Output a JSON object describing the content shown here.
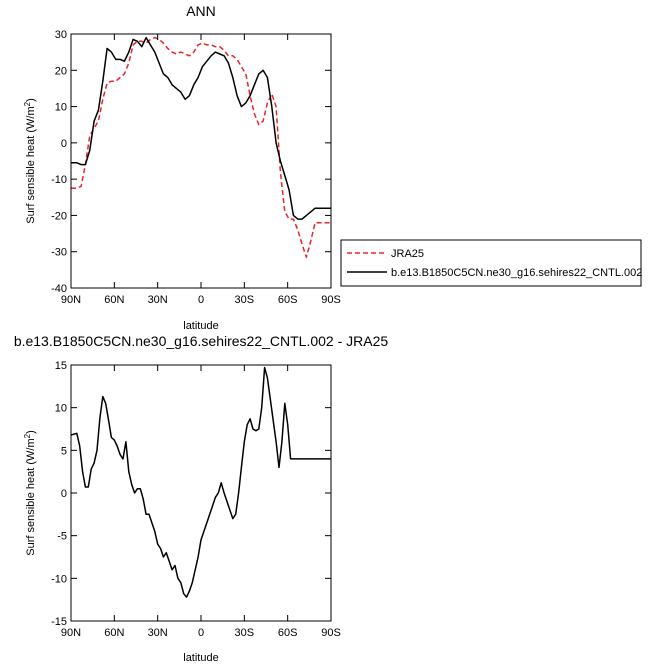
{
  "chart_data": [
    {
      "type": "line",
      "title": "ANN",
      "xlabel": "latitude",
      "ylabel": "Surf sensible heat (W/m",
      "ylabel_sup": "2",
      "ylabel_close": ")",
      "x_ticks": [
        -90,
        -60,
        -30,
        0,
        30,
        60,
        90
      ],
      "x_tick_labels": [
        "90N",
        "60N",
        "30N",
        "0",
        "30S",
        "60S",
        "90S"
      ],
      "y_ticks": [
        -40,
        -30,
        -20,
        -10,
        0,
        10,
        20,
        30
      ],
      "y_tick_labels": [
        "-40",
        "-30",
        "-20",
        "-10",
        "0",
        "10",
        "20",
        "30"
      ],
      "xlim": [
        -90,
        90
      ],
      "ylim": [
        -40,
        30
      ],
      "grid": false,
      "legend_position": "right",
      "x": [
        -90,
        -86,
        -83,
        -80,
        -77,
        -74,
        -71,
        -68,
        -65,
        -62,
        -59,
        -56,
        -53,
        -50,
        -47,
        -44,
        -41,
        -38,
        -35,
        -32,
        -29,
        -26,
        -23,
        -20,
        -17,
        -14,
        -11,
        -8,
        -5,
        -2,
        1,
        4,
        7,
        10,
        13,
        16,
        19,
        22,
        25,
        28,
        31,
        34,
        37,
        40,
        43,
        46,
        49,
        52,
        55,
        58,
        61,
        64,
        67,
        70,
        73,
        76,
        79,
        82,
        85,
        88,
        90
      ],
      "series": [
        {
          "name": "JRA25",
          "color": "#e4262b",
          "dash": "dashed",
          "values": [
            -12.5,
            -12.5,
            -12,
            -6,
            2,
            4,
            6,
            12,
            16.5,
            17,
            17,
            18,
            19,
            22,
            27,
            28,
            28,
            27.5,
            28.5,
            29,
            28.5,
            27.5,
            26,
            25,
            24.5,
            25,
            24.5,
            24,
            25,
            27,
            27.5,
            27,
            27,
            26.5,
            26.5,
            25.5,
            24,
            24,
            23,
            21,
            19,
            13,
            8,
            5,
            6,
            11,
            13.5,
            10,
            -8,
            -19,
            -21,
            -21,
            -24,
            -28,
            -31.5,
            -27,
            -22,
            -22,
            -22,
            -22,
            -22
          ]
        },
        {
          "name": "b.e13.B1850C5CN.ne30_g16.sehires22_CNTL.002",
          "color": "#000000",
          "dash": "solid",
          "values": [
            -5.5,
            -5.5,
            -6,
            -6,
            -2,
            6,
            9,
            17,
            26,
            25,
            23,
            23,
            22.5,
            25,
            28.5,
            28,
            26.5,
            29,
            27,
            25,
            22,
            19,
            18,
            16,
            15,
            14,
            12,
            13,
            16,
            18,
            21,
            22.5,
            24,
            25,
            24.5,
            24,
            22,
            18,
            13,
            10,
            11,
            13,
            16,
            19,
            20,
            18,
            10,
            0,
            -5,
            -9,
            -13,
            -20,
            -21,
            -21,
            -20,
            -19,
            -18,
            -18,
            -18,
            -18,
            -18
          ]
        }
      ]
    },
    {
      "type": "line",
      "title": "b.e13.B1850C5CN.ne30_g16.sehires22_CNTL.002 - JRA25",
      "xlabel": "latitude",
      "ylabel": "Surf sensible heat (W/m",
      "ylabel_sup": "2",
      "ylabel_close": ")",
      "x_ticks": [
        -90,
        -60,
        -30,
        0,
        30,
        60,
        90
      ],
      "x_tick_labels": [
        "90N",
        "60N",
        "30N",
        "0",
        "30S",
        "60S",
        "90S"
      ],
      "y_ticks": [
        -15,
        -10,
        -5,
        0,
        5,
        10,
        15
      ],
      "y_tick_labels": [
        "-15",
        "-10",
        "-5",
        "0",
        "5",
        "10",
        "15"
      ],
      "xlim": [
        -90,
        90
      ],
      "ylim": [
        -15,
        15
      ],
      "grid": false,
      "x": [
        -90,
        -86,
        -84,
        -82,
        -80,
        -78,
        -76,
        -74,
        -72,
        -70,
        -68,
        -66,
        -64,
        -62,
        -60,
        -58,
        -56,
        -54,
        -52,
        -50,
        -48,
        -46,
        -44,
        -42,
        -40,
        -38,
        -36,
        -34,
        -32,
        -30,
        -28,
        -26,
        -24,
        -22,
        -20,
        -18,
        -16,
        -14,
        -12,
        -10,
        -8,
        -6,
        -4,
        -2,
        0,
        2,
        4,
        6,
        8,
        10,
        12,
        14,
        16,
        18,
        20,
        22,
        24,
        26,
        28,
        30,
        32,
        34,
        36,
        38,
        40,
        42,
        44,
        46,
        48,
        50,
        52,
        54,
        56,
        58,
        60,
        62,
        64,
        66,
        68,
        70,
        72,
        74,
        76,
        78,
        80,
        82,
        84,
        86,
        88,
        90
      ],
      "series": [
        {
          "name": "",
          "color": "#000000",
          "dash": "solid",
          "values": [
            6.8,
            7,
            5.5,
            2.5,
            0.7,
            0.7,
            2.8,
            3.5,
            5,
            8.8,
            11.3,
            10.5,
            8.5,
            6.5,
            6.2,
            5.5,
            4.5,
            4,
            6,
            2.5,
            1,
            0,
            0.5,
            0.5,
            -0.7,
            -2.5,
            -2.5,
            -3.5,
            -4.5,
            -6,
            -6.5,
            -7.5,
            -7,
            -8,
            -9,
            -8.5,
            -10,
            -10.5,
            -11.8,
            -12.2,
            -11.5,
            -10.5,
            -9,
            -7.5,
            -5.5,
            -4.5,
            -3.5,
            -2.5,
            -1.5,
            -0.5,
            0,
            1.2,
            0,
            -1,
            -2,
            -3,
            -2.5,
            0,
            3,
            6,
            8,
            8.7,
            7.5,
            7.3,
            7.5,
            10,
            14.7,
            13.5,
            11,
            8.5,
            6,
            3,
            6,
            10.5,
            8,
            4,
            4,
            4,
            4,
            4,
            4,
            4,
            4,
            4,
            4,
            4,
            4,
            4,
            4,
            4
          ]
        }
      ]
    }
  ]
}
